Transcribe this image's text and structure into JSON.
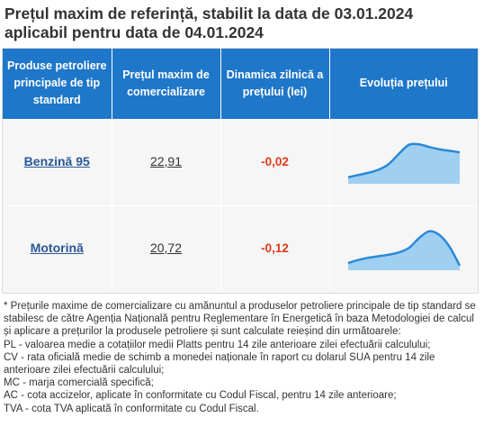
{
  "title": "Prețul maxim de referință, stabilit la data de 03.01.2024 aplicabil pentru data de 04.01.2024",
  "table": {
    "headers": [
      "Produse petroliere principale de tip standard",
      "Prețul maxim de comercializare",
      "Dinamica zilnică a prețului (lei)",
      "Evoluția prețului"
    ],
    "rows": [
      {
        "product": "Benzină 95",
        "price": "22,91",
        "change": "-0,02",
        "trend": [
          0.1,
          0.16,
          0.22,
          0.3,
          0.45,
          0.72,
          0.96,
          0.97,
          0.9,
          0.84,
          0.8,
          0.76
        ]
      },
      {
        "product": "Motorină",
        "price": "20,72",
        "change": "-0,12",
        "trend": [
          0.12,
          0.2,
          0.26,
          0.3,
          0.34,
          0.4,
          0.52,
          0.78,
          0.96,
          0.86,
          0.55,
          0.05
        ]
      }
    ]
  },
  "colors": {
    "header_bg": "#1f77c9",
    "link": "#2a5896",
    "change_negative": "#e03a1b",
    "sparkline_line": "#2b89d6",
    "sparkline_fill": "#9fd0f2"
  },
  "notes": [
    "* Prețurile maxime de comercializare cu amănuntul a produselor petroliere principale de tip standard se stabilesc de către Agenția Națională pentru Reglementare în Energetică în baza Metodologiei de calcul și aplicare a prețurilor la produsele petroliere și sunt calculate reieșind din următoarele:",
    "PL - valoarea medie a cotațiilor medii Platts pentru 14 zile anterioare zilei efectuării calculului;",
    "CV - rata oficială medie de schimb a monedei naționale în raport cu dolarul SUA pentru 14 zile anterioare zilei efectuării calculului;",
    "MC - marja comercială specifică;",
    "AC - cota accizelor, aplicate în conformitate cu Codul Fiscal, pentru 14 zile anterioare;",
    "TVA - cota TVA aplicată în conformitate cu Codul Fiscal."
  ]
}
